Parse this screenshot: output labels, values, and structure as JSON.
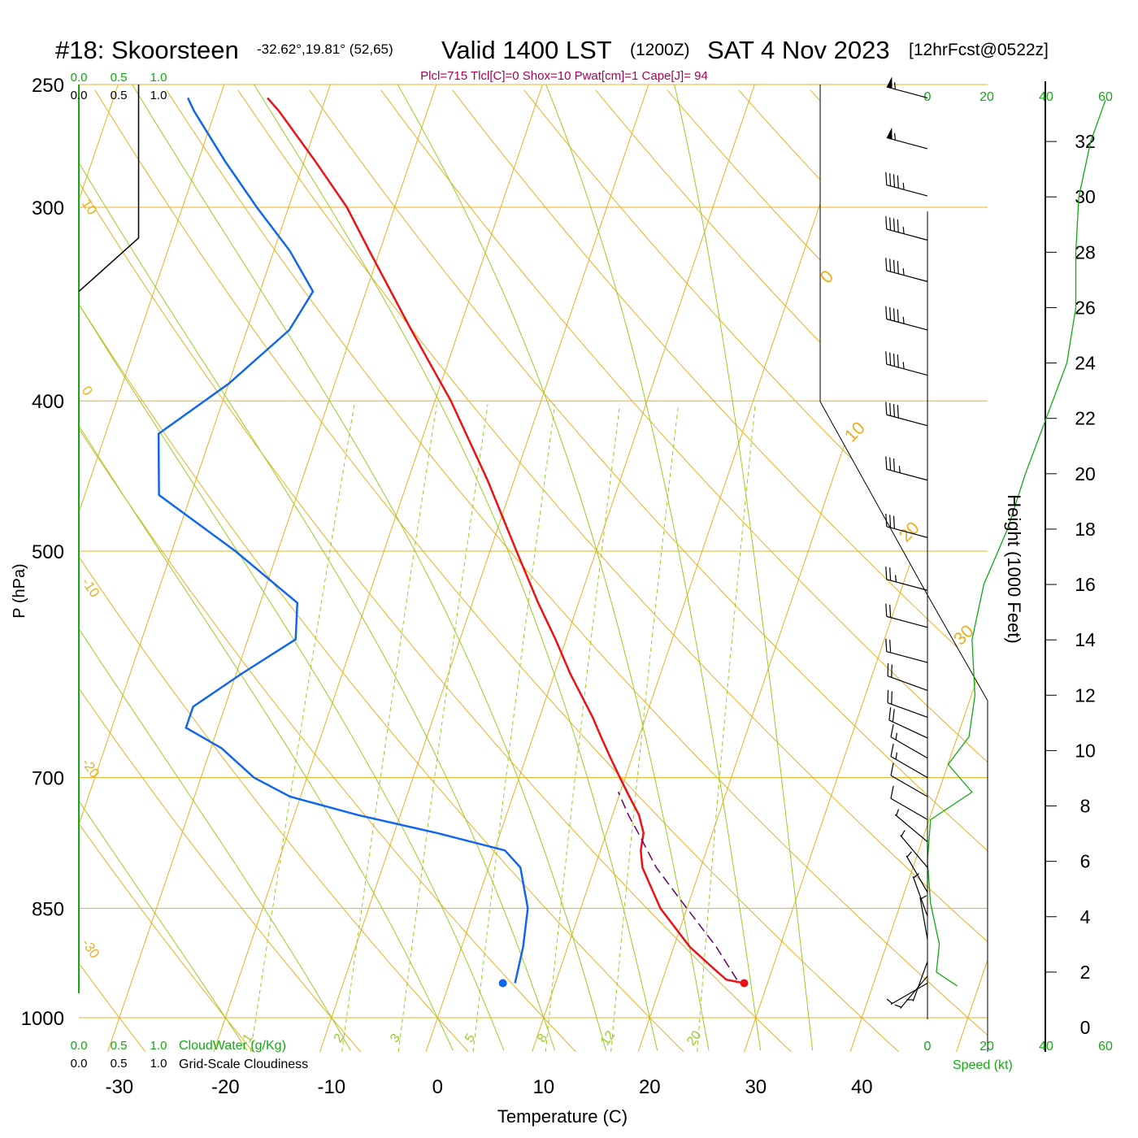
{
  "header": {
    "station": "#18: Skoorsteen",
    "coords": "-32.62°,19.81° (52,65)",
    "valid": "Valid 1400 LST",
    "zulu": "(1200Z)",
    "date": "SAT 4 Nov 2023",
    "forecast": "[12hrFcst@0522z]",
    "params": "Plcl=715 Tlcl[C]=0 Shox=10 Pwat[cm]=1 Cape[J]= 94"
  },
  "colors": {
    "temperature": "#ee1111",
    "dewpoint": "#1166ee",
    "isotherm": "#e8b020",
    "moist_adiabat": "#99cc22",
    "mixing_ratio": "#99cc22",
    "parcel": "#660066",
    "scale_green": "#11aa11"
  },
  "labels": {
    "ylabel": "P (hPa)",
    "xlabel": "Temperature (C)",
    "height_label": "Height (1000 Feet)",
    "speed_label": "Speed (kt)",
    "cloudwater_label": "CloudWater (g/Kg)",
    "cloudiness_label": "Grid-Scale Cloudiness"
  },
  "chart_data": {
    "type": "skew-t",
    "pressure_ticks": [
      250,
      300,
      400,
      500,
      700,
      850,
      1000
    ],
    "temperature_ticks": [
      -30,
      -20,
      -10,
      0,
      10,
      20,
      30,
      40
    ],
    "height_ticks_kft": [
      0,
      2,
      4,
      6,
      8,
      10,
      12,
      14,
      16,
      18,
      20,
      22,
      24,
      26,
      28,
      30,
      32
    ],
    "speed_ticks_kt": [
      0,
      20,
      40,
      60
    ],
    "cloud_scale_ticks": [
      "0.0",
      "0.5",
      "1.0"
    ],
    "mixing_ratio_labels": [
      "1",
      "2",
      "3",
      "5",
      "8",
      "12",
      "20"
    ],
    "isotherm_labels_left": [
      "10",
      "0",
      "-10",
      "-20",
      "-30"
    ],
    "isotherm_labels_right": [
      "0",
      "10",
      "20",
      "30"
    ],
    "temperature_profile": [
      {
        "p": 950,
        "t": 27.8
      },
      {
        "p": 945,
        "t": 26.0
      },
      {
        "p": 930,
        "t": 24.5
      },
      {
        "p": 900,
        "t": 21.5
      },
      {
        "p": 850,
        "t": 17.5
      },
      {
        "p": 800,
        "t": 14.5
      },
      {
        "p": 780,
        "t": 13.8
      },
      {
        "p": 760,
        "t": 13.5
      },
      {
        "p": 740,
        "t": 12.5
      },
      {
        "p": 720,
        "t": 11.0
      },
      {
        "p": 700,
        "t": 9.5
      },
      {
        "p": 680,
        "t": 8.0
      },
      {
        "p": 660,
        "t": 6.5
      },
      {
        "p": 640,
        "t": 5.0
      },
      {
        "p": 600,
        "t": 1.5
      },
      {
        "p": 570,
        "t": -1.0
      },
      {
        "p": 540,
        "t": -3.8
      },
      {
        "p": 500,
        "t": -7.5
      },
      {
        "p": 450,
        "t": -12.5
      },
      {
        "p": 400,
        "t": -18.5
      },
      {
        "p": 360,
        "t": -24.5
      },
      {
        "p": 320,
        "t": -31.0
      },
      {
        "p": 300,
        "t": -34.5
      },
      {
        "p": 280,
        "t": -39.0
      },
      {
        "p": 260,
        "t": -44.0
      },
      {
        "p": 255,
        "t": -45.5
      }
    ],
    "dewpoint_profile": [
      {
        "p": 950,
        "d": 6.2
      },
      {
        "p": 900,
        "d": 5.8
      },
      {
        "p": 850,
        "d": 5.0
      },
      {
        "p": 800,
        "d": 3.0
      },
      {
        "p": 780,
        "d": 1.0
      },
      {
        "p": 760,
        "d": -6.0
      },
      {
        "p": 740,
        "d": -14.0
      },
      {
        "p": 720,
        "d": -21.0
      },
      {
        "p": 700,
        "d": -25.0
      },
      {
        "p": 670,
        "d": -29.0
      },
      {
        "p": 650,
        "d": -33.0
      },
      {
        "p": 630,
        "d": -33.0
      },
      {
        "p": 600,
        "d": -29.5
      },
      {
        "p": 570,
        "d": -25.5
      },
      {
        "p": 540,
        "d": -26.5
      },
      {
        "p": 500,
        "d": -34.0
      },
      {
        "p": 460,
        "d": -43.0
      },
      {
        "p": 420,
        "d": -45.0
      },
      {
        "p": 390,
        "d": -40.0
      },
      {
        "p": 360,
        "d": -36.0
      },
      {
        "p": 340,
        "d": -35.0
      },
      {
        "p": 320,
        "d": -38.5
      },
      {
        "p": 300,
        "d": -43.0
      },
      {
        "p": 280,
        "d": -47.5
      },
      {
        "p": 260,
        "d": -52.0
      },
      {
        "p": 255,
        "d": -53.0
      }
    ],
    "parcel_profile": [
      {
        "p": 945,
        "t": 27.0
      },
      {
        "p": 900,
        "t": 24.0
      },
      {
        "p": 850,
        "t": 20.0
      },
      {
        "p": 800,
        "t": 15.8
      },
      {
        "p": 760,
        "t": 13.0
      },
      {
        "p": 740,
        "t": 11.5
      },
      {
        "p": 715,
        "t": 9.8
      }
    ],
    "wind_speed_profile": [
      {
        "h": 1.5,
        "s": 10
      },
      {
        "h": 2.0,
        "s": 3
      },
      {
        "h": 3.0,
        "s": 4
      },
      {
        "h": 4.5,
        "s": 1
      },
      {
        "h": 6.0,
        "s": 0
      },
      {
        "h": 7.5,
        "s": 1
      },
      {
        "h": 8.5,
        "s": 15
      },
      {
        "h": 9.5,
        "s": 7
      },
      {
        "h": 10.5,
        "s": 14
      },
      {
        "h": 12.0,
        "s": 16
      },
      {
        "h": 14.0,
        "s": 15
      },
      {
        "h": 16.0,
        "s": 19
      },
      {
        "h": 18.0,
        "s": 27
      },
      {
        "h": 20.0,
        "s": 33
      },
      {
        "h": 22.0,
        "s": 40
      },
      {
        "h": 24.0,
        "s": 47
      },
      {
        "h": 26.0,
        "s": 50
      },
      {
        "h": 28.0,
        "s": 50
      },
      {
        "h": 30.0,
        "s": 51
      },
      {
        "h": 32.0,
        "s": 55
      },
      {
        "h": 33.5,
        "s": 60
      }
    ],
    "wind_barbs": [
      {
        "p": 255,
        "dir": 285,
        "spd": 55
      },
      {
        "p": 275,
        "dir": 285,
        "spd": 55
      },
      {
        "p": 295,
        "dir": 285,
        "spd": 45
      },
      {
        "p": 315,
        "dir": 285,
        "spd": 45
      },
      {
        "p": 335,
        "dir": 285,
        "spd": 45
      },
      {
        "p": 360,
        "dir": 285,
        "spd": 45
      },
      {
        "p": 385,
        "dir": 285,
        "spd": 45
      },
      {
        "p": 415,
        "dir": 285,
        "spd": 40
      },
      {
        "p": 450,
        "dir": 285,
        "spd": 35
      },
      {
        "p": 490,
        "dir": 285,
        "spd": 30
      },
      {
        "p": 530,
        "dir": 285,
        "spd": 25
      },
      {
        "p": 560,
        "dir": 285,
        "spd": 20
      },
      {
        "p": 590,
        "dir": 285,
        "spd": 20
      },
      {
        "p": 615,
        "dir": 290,
        "spd": 20
      },
      {
        "p": 640,
        "dir": 290,
        "spd": 20
      },
      {
        "p": 660,
        "dir": 295,
        "spd": 20
      },
      {
        "p": 680,
        "dir": 300,
        "spd": 15
      },
      {
        "p": 700,
        "dir": 300,
        "spd": 15
      },
      {
        "p": 720,
        "dir": 300,
        "spd": 10
      },
      {
        "p": 745,
        "dir": 300,
        "spd": 10
      },
      {
        "p": 770,
        "dir": 310,
        "spd": 5
      },
      {
        "p": 800,
        "dir": 320,
        "spd": 5
      },
      {
        "p": 830,
        "dir": 330,
        "spd": 5
      },
      {
        "p": 860,
        "dir": 340,
        "spd": 5
      },
      {
        "p": 890,
        "dir": 350,
        "spd": 5
      },
      {
        "p": 920,
        "dir": 200,
        "spd": 5
      },
      {
        "p": 940,
        "dir": 220,
        "spd": 5
      },
      {
        "p": 950,
        "dir": 240,
        "spd": 5
      }
    ],
    "cloudiness_profile": [
      {
        "p": 250,
        "v": 0.75
      },
      {
        "p": 314,
        "v": 0.75
      },
      {
        "p": 340,
        "v": 0.0
      }
    ]
  }
}
